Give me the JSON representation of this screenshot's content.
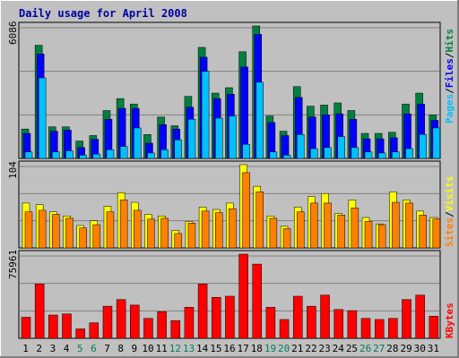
{
  "colors": {
    "background": "#C0C0C0",
    "panel": "#C0C0C0",
    "title": "#0000A0",
    "hits": "#008040",
    "files": "#0000FF",
    "pages": "#00C0FF",
    "visits": "#FFFF00",
    "sites": "#FF8000",
    "kbytes": "#FF0000",
    "weekend_day": "#00805C",
    "weekday": "#000000"
  },
  "chart_data": [
    {
      "type": "bar",
      "title": "Daily usage for April 2008",
      "panel": "top",
      "ylabel_max": "6086",
      "ylim": [
        0,
        6086
      ],
      "grid": true,
      "legend": [
        {
          "name": "Pages",
          "color": "#00C0FF"
        },
        {
          "name": "Files",
          "color": "#0000FF"
        },
        {
          "name": "Hits",
          "color": "#008040"
        }
      ],
      "legend_sep": "/",
      "categories": [
        "1",
        "2",
        "3",
        "4",
        "5",
        "6",
        "7",
        "8",
        "9",
        "10",
        "11",
        "12",
        "13",
        "14",
        "15",
        "16",
        "17",
        "18",
        "19",
        "20",
        "21",
        "22",
        "23",
        "24",
        "25",
        "26",
        "27",
        "28",
        "29",
        "30",
        "31"
      ],
      "series": [
        {
          "name": "Hits",
          "values": [
            1350,
            5200,
            1450,
            1450,
            800,
            1050,
            2200,
            2750,
            2500,
            1100,
            1900,
            1500,
            2850,
            5100,
            3000,
            3250,
            4900,
            6086,
            1950,
            1250,
            3300,
            2400,
            2450,
            2550,
            2200,
            1150,
            1150,
            1200,
            2500,
            3000,
            2000
          ]
        },
        {
          "name": "Files",
          "values": [
            1150,
            4800,
            1250,
            1300,
            500,
            880,
            1800,
            2300,
            2300,
            700,
            1550,
            1350,
            2350,
            4650,
            2750,
            2950,
            4200,
            5700,
            1650,
            1050,
            2800,
            1900,
            2000,
            2050,
            1800,
            900,
            900,
            950,
            2050,
            2500,
            1750
          ]
        },
        {
          "name": "Pages",
          "values": [
            300,
            3700,
            300,
            350,
            150,
            200,
            400,
            550,
            1400,
            250,
            400,
            850,
            1800,
            4000,
            1850,
            1950,
            650,
            3500,
            300,
            150,
            1100,
            450,
            500,
            1000,
            500,
            300,
            250,
            300,
            450,
            1100,
            1400
          ]
        }
      ]
    },
    {
      "type": "bar",
      "panel": "middle",
      "ylabel_max": "104",
      "ylim": [
        0,
        104
      ],
      "grid": true,
      "legend": [
        {
          "name": "Sites",
          "color": "#FF8000"
        },
        {
          "name": "Visits",
          "color": "#FFFF00"
        }
      ],
      "legend_sep": "/",
      "categories": [
        "1",
        "2",
        "3",
        "4",
        "5",
        "6",
        "7",
        "8",
        "9",
        "10",
        "11",
        "12",
        "13",
        "14",
        "15",
        "16",
        "17",
        "18",
        "19",
        "20",
        "21",
        "22",
        "23",
        "24",
        "25",
        "26",
        "27",
        "28",
        "29",
        "30",
        "31"
      ],
      "series": [
        {
          "name": "Visits",
          "values": [
            56,
            54,
            45,
            40,
            28,
            34,
            52,
            69,
            57,
            42,
            40,
            22,
            33,
            51,
            48,
            56,
            104,
            77,
            40,
            27,
            51,
            64,
            68,
            43,
            60,
            38,
            30,
            70,
            60,
            46,
            38
          ]
        },
        {
          "name": "Sites",
          "values": [
            45,
            47,
            42,
            37,
            25,
            29,
            45,
            60,
            47,
            36,
            37,
            18,
            31,
            46,
            44,
            49,
            94,
            70,
            37,
            24,
            45,
            56,
            56,
            41,
            50,
            33,
            29,
            57,
            56,
            41,
            36
          ]
        }
      ]
    },
    {
      "type": "bar",
      "panel": "bottom",
      "ylabel_max": "75961",
      "ylim": [
        0,
        75961
      ],
      "grid": true,
      "legend": [
        {
          "name": "KBytes",
          "color": "#FF0000"
        }
      ],
      "categories": [
        "1",
        "2",
        "3",
        "4",
        "5",
        "6",
        "7",
        "8",
        "9",
        "10",
        "11",
        "12",
        "13",
        "14",
        "15",
        "16",
        "17",
        "18",
        "19",
        "20",
        "21",
        "22",
        "23",
        "24",
        "25",
        "26",
        "27",
        "28",
        "29",
        "30",
        "31"
      ],
      "series": [
        {
          "name": "KBytes",
          "values": [
            19000,
            49000,
            21000,
            22000,
            8500,
            14000,
            29000,
            35000,
            30000,
            18000,
            24000,
            16000,
            28000,
            49000,
            37000,
            38000,
            75961,
            67000,
            28000,
            17000,
            38000,
            29000,
            39000,
            26000,
            25000,
            18000,
            17000,
            18000,
            35000,
            39000,
            20000
          ]
        }
      ]
    }
  ],
  "x_axis": {
    "labels": [
      "1",
      "2",
      "3",
      "4",
      "5",
      "6",
      "7",
      "8",
      "9",
      "10",
      "11",
      "12",
      "13",
      "14",
      "15",
      "16",
      "17",
      "18",
      "19",
      "20",
      "21",
      "22",
      "23",
      "24",
      "25",
      "26",
      "27",
      "28",
      "29",
      "30",
      "31"
    ],
    "weekend": [
      5,
      6,
      12,
      13,
      19,
      20,
      26,
      27
    ]
  }
}
